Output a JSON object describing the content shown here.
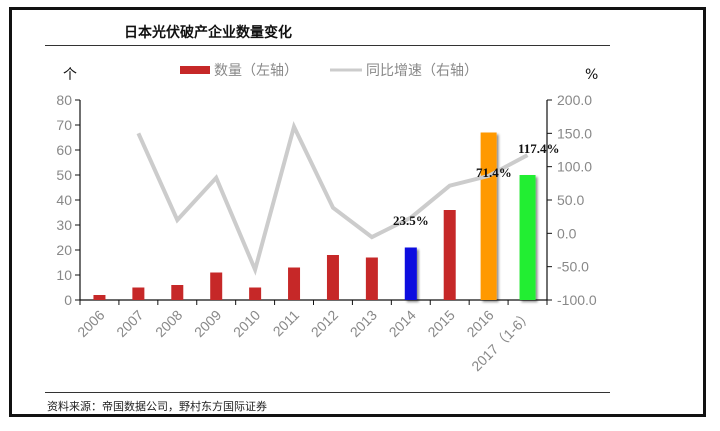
{
  "title": "日本光伏破产企业数量变化",
  "source": "资料来源：帝国数据公司，野村东方国际证券",
  "left_unit": "个",
  "right_unit": "%",
  "legend": [
    {
      "label": "数量（左轴）",
      "color": "#c62828",
      "kind": "bar"
    },
    {
      "label": "同比增速（右轴）",
      "color": "#cccccc",
      "kind": "line"
    }
  ],
  "chart_data": {
    "type": "bar+line",
    "title": "日本光伏破产企业数量变化",
    "categories": [
      "2006",
      "2007",
      "2008",
      "2009",
      "2010",
      "2011",
      "2012",
      "2013",
      "2014",
      "2015",
      "2016",
      "2017（1-6）"
    ],
    "series": [
      {
        "name": "数量（左轴）",
        "type": "bar",
        "axis": "left",
        "values": [
          2,
          5,
          6,
          11,
          5,
          13,
          18,
          17,
          21,
          36,
          67,
          50
        ],
        "colors": [
          "#c62828",
          "#c62828",
          "#c62828",
          "#c62828",
          "#c62828",
          "#c62828",
          "#c62828",
          "#c62828",
          "#0a0adf",
          "#c62828",
          "#ff9900",
          "#22ee33"
        ]
      },
      {
        "name": "同比增速（右轴）",
        "type": "line",
        "axis": "right",
        "values": [
          null,
          150.0,
          20.0,
          83.3,
          -54.5,
          160.0,
          38.5,
          -5.6,
          23.5,
          71.4,
          86.1,
          117.4
        ],
        "color": "#cccccc"
      }
    ],
    "annotations": [
      {
        "text": "23.5%",
        "category": "2014"
      },
      {
        "text": "71.4%",
        "category": "2015"
      },
      {
        "text": "117.4%",
        "category": "2017（1-6）"
      }
    ],
    "ylabel_left": "个",
    "ylabel_right": "%",
    "ylim_left": [
      0,
      80
    ],
    "yticks_left": [
      "0",
      "10",
      "20",
      "30",
      "40",
      "50",
      "60",
      "70",
      "80"
    ],
    "ylim_right": [
      -100,
      200
    ],
    "yticks_right": [
      "-100.0",
      "-50.0",
      "0.0",
      "50.0",
      "100.0",
      "150.0",
      "200.0"
    ],
    "xlabel": "",
    "grid": false,
    "legend_position": "top"
  }
}
